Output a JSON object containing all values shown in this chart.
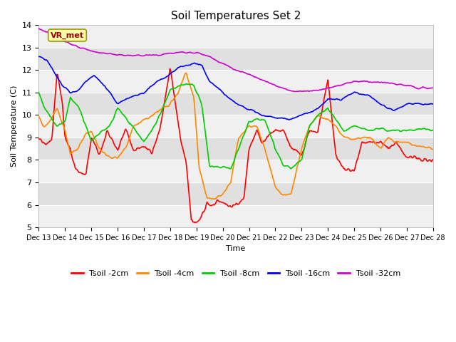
{
  "title": "Soil Temperatures Set 2",
  "xlabel": "Time",
  "ylabel": "Soil Temperature (C)",
  "ylim": [
    5.0,
    14.0
  ],
  "yticks": [
    5.0,
    6.0,
    7.0,
    8.0,
    9.0,
    10.0,
    11.0,
    12.0,
    13.0,
    14.0
  ],
  "xtick_labels": [
    "Dec 13",
    "Dec 14",
    "Dec 15",
    "Dec 16",
    "Dec 17",
    "Dec 18",
    "Dec 19",
    "Dec 20",
    "Dec 21",
    "Dec 22",
    "Dec 23",
    "Dec 24",
    "Dec 25",
    "Dec 26",
    "Dec 27",
    "Dec 28"
  ],
  "series_colors": {
    "Tsoil -2cm": "#ff0000",
    "Tsoil -4cm": "#ff8800",
    "Tsoil -8cm": "#00cc00",
    "Tsoil -16cm": "#0000ff",
    "Tsoil -32cm": "#cc00cc"
  },
  "annotation_text": "VR_met",
  "annotation_color": "#990000",
  "annotation_bg": "#ffffaa",
  "annotation_edge": "#999900",
  "fig_bg": "#ffffff",
  "plot_bg_light": "#f0f0f0",
  "plot_bg_dark": "#e0e0e0",
  "grid_color": "#ffffff",
  "n_points": 500
}
